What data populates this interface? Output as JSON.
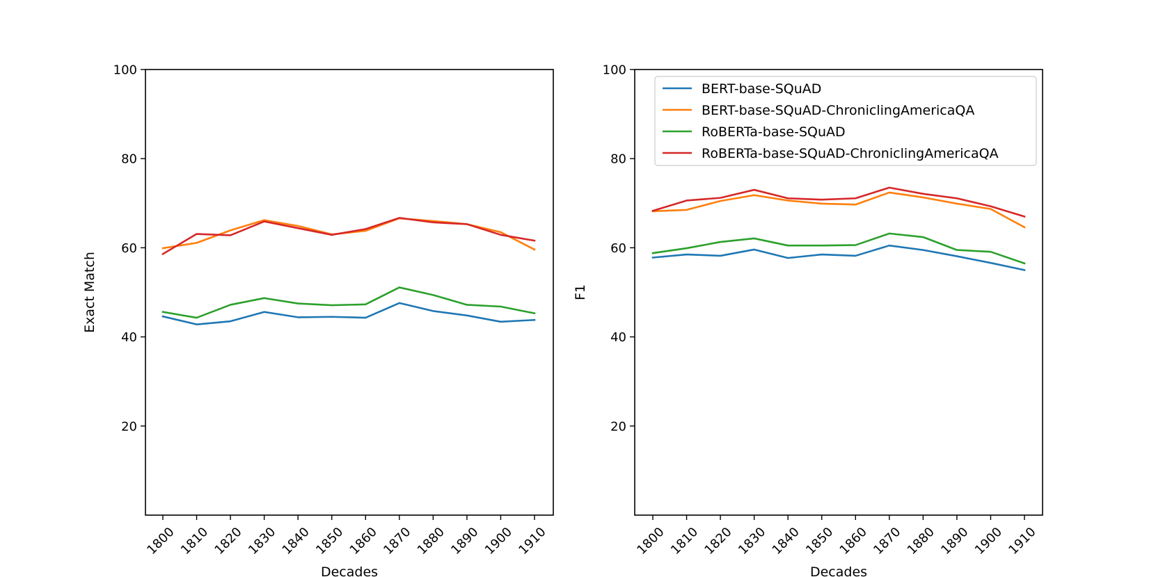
{
  "chart_data": [
    {
      "type": "line",
      "xlabel": "Decades",
      "ylabel": "Exact Match",
      "x": [
        1800,
        1810,
        1820,
        1830,
        1840,
        1850,
        1860,
        1870,
        1880,
        1890,
        1900,
        1910
      ],
      "x_tick_labels": [
        "1800",
        "1810",
        "1820",
        "1830",
        "1840",
        "1850",
        "1860",
        "1870",
        "1880",
        "1890",
        "1900",
        "1910"
      ],
      "ylim": [
        0,
        100
      ],
      "y_ticks": [
        20,
        40,
        60,
        80,
        100
      ],
      "y_tick_labels": [
        "20",
        "40",
        "60",
        "80",
        "100"
      ],
      "grid": false,
      "legend": null,
      "series": [
        {
          "name": "BERT-base-SQuAD",
          "color": "#1f77b4",
          "values": [
            44.6,
            42.8,
            43.5,
            45.6,
            44.4,
            44.5,
            44.3,
            47.6,
            45.8,
            44.8,
            43.4,
            43.8
          ]
        },
        {
          "name": "BERT-base-SQuAD-ChroniclingAmericaQA",
          "color": "#ff7f0e",
          "values": [
            59.9,
            61.1,
            63.9,
            66.2,
            64.9,
            63.0,
            63.8,
            66.6,
            66.0,
            65.3,
            63.5,
            59.6
          ]
        },
        {
          "name": "RoBERTa-base-SQuAD",
          "color": "#2ca02c",
          "values": [
            45.6,
            44.3,
            47.2,
            48.7,
            47.5,
            47.1,
            47.3,
            51.1,
            49.4,
            47.2,
            46.8,
            45.3
          ]
        },
        {
          "name": "RoBERTa-base-SQuAD-ChroniclingAmericaQA",
          "color": "#d62728",
          "values": [
            58.6,
            63.1,
            62.8,
            65.9,
            64.4,
            62.9,
            64.2,
            66.7,
            65.7,
            65.3,
            62.9,
            61.6
          ]
        }
      ]
    },
    {
      "type": "line",
      "xlabel": "Decades",
      "ylabel": "F1",
      "x": [
        1800,
        1810,
        1820,
        1830,
        1840,
        1850,
        1860,
        1870,
        1880,
        1890,
        1900,
        1910
      ],
      "x_tick_labels": [
        "1800",
        "1810",
        "1820",
        "1830",
        "1840",
        "1850",
        "1860",
        "1870",
        "1880",
        "1890",
        "1900",
        "1910"
      ],
      "ylim": [
        0,
        100
      ],
      "y_ticks": [
        20,
        40,
        60,
        80,
        100
      ],
      "y_tick_labels": [
        "20",
        "40",
        "60",
        "80",
        "100"
      ],
      "grid": false,
      "legend": "top",
      "series": [
        {
          "name": "BERT-base-SQuAD",
          "color": "#1f77b4",
          "values": [
            57.8,
            58.5,
            58.2,
            59.6,
            57.7,
            58.5,
            58.2,
            60.5,
            59.5,
            58.1,
            56.6,
            55.0
          ]
        },
        {
          "name": "BERT-base-SQuAD-ChroniclingAmericaQA",
          "color": "#ff7f0e",
          "values": [
            68.2,
            68.5,
            70.5,
            71.8,
            70.6,
            69.9,
            69.7,
            72.4,
            71.3,
            69.9,
            68.7,
            64.6
          ]
        },
        {
          "name": "RoBERTa-base-SQuAD",
          "color": "#2ca02c",
          "values": [
            58.8,
            59.9,
            61.3,
            62.1,
            60.5,
            60.5,
            60.6,
            63.2,
            62.4,
            59.5,
            59.1,
            56.5
          ]
        },
        {
          "name": "RoBERTa-base-SQuAD-ChroniclingAmericaQA",
          "color": "#d62728",
          "values": [
            68.3,
            70.6,
            71.2,
            73.0,
            71.1,
            70.8,
            71.1,
            73.5,
            72.1,
            71.1,
            69.3,
            67.0
          ]
        }
      ]
    }
  ]
}
